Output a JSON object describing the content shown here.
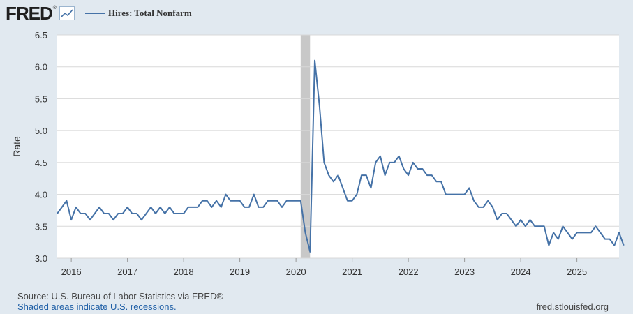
{
  "header": {
    "logo_text": "FRED",
    "logo_mark": "®"
  },
  "chart_data": {
    "type": "line",
    "title": "",
    "ylabel": "Rate",
    "xlabel": "",
    "ylim": [
      3.0,
      6.5
    ],
    "xlim": [
      "2015-10",
      "2025-10"
    ],
    "yticks": [
      "3.0",
      "3.5",
      "4.0",
      "4.5",
      "5.0",
      "5.5",
      "6.0",
      "6.5"
    ],
    "xticks": [
      "2016",
      "2017",
      "2018",
      "2019",
      "2020",
      "2021",
      "2022",
      "2023",
      "2024",
      "2025"
    ],
    "grid": true,
    "legend": "top-left",
    "series": [
      {
        "name": "Hires: Total Nonfarm",
        "color": "#4572a7",
        "x_start": "2015-10",
        "frequency": "monthly",
        "values": [
          3.7,
          3.8,
          3.9,
          3.6,
          3.8,
          3.7,
          3.7,
          3.6,
          3.7,
          3.8,
          3.7,
          3.7,
          3.6,
          3.7,
          3.7,
          3.8,
          3.7,
          3.7,
          3.6,
          3.7,
          3.8,
          3.7,
          3.8,
          3.7,
          3.8,
          3.7,
          3.7,
          3.7,
          3.8,
          3.8,
          3.8,
          3.9,
          3.9,
          3.8,
          3.9,
          3.8,
          4.0,
          3.9,
          3.9,
          3.9,
          3.8,
          3.8,
          4.0,
          3.8,
          3.8,
          3.9,
          3.9,
          3.9,
          3.8,
          3.9,
          3.9,
          3.9,
          3.9,
          3.4,
          3.1,
          6.1,
          5.4,
          4.5,
          4.3,
          4.2,
          4.3,
          4.1,
          3.9,
          3.9,
          4.0,
          4.3,
          4.3,
          4.1,
          4.5,
          4.6,
          4.3,
          4.5,
          4.5,
          4.6,
          4.4,
          4.3,
          4.5,
          4.4,
          4.4,
          4.3,
          4.3,
          4.2,
          4.2,
          4.0,
          4.0,
          4.0,
          4.0,
          4.0,
          4.1,
          3.9,
          3.8,
          3.8,
          3.9,
          3.8,
          3.6,
          3.7,
          3.7,
          3.6,
          3.5,
          3.6,
          3.5,
          3.6,
          3.5,
          3.5,
          3.5,
          3.2,
          3.4,
          3.3,
          3.5,
          3.4,
          3.3,
          3.4,
          3.4,
          3.4,
          3.4,
          3.5,
          3.4,
          3.3,
          3.3,
          3.2,
          3.4,
          3.2
        ]
      }
    ],
    "recessions": [
      [
        "2020-02",
        "2020-04"
      ]
    ]
  },
  "footer": {
    "source": "Source: U.S. Bureau of Labor Statistics via FRED®",
    "note": "Shaded areas indicate U.S. recessions.",
    "url": "fred.stlouisfed.org"
  },
  "colors": {
    "background": "#e1e9f0",
    "plot_bg": "#ffffff",
    "grid": "#d8d8d8",
    "line": "#4572a7",
    "recession": "#c8c8c8",
    "note_link": "#1f5fa6"
  }
}
